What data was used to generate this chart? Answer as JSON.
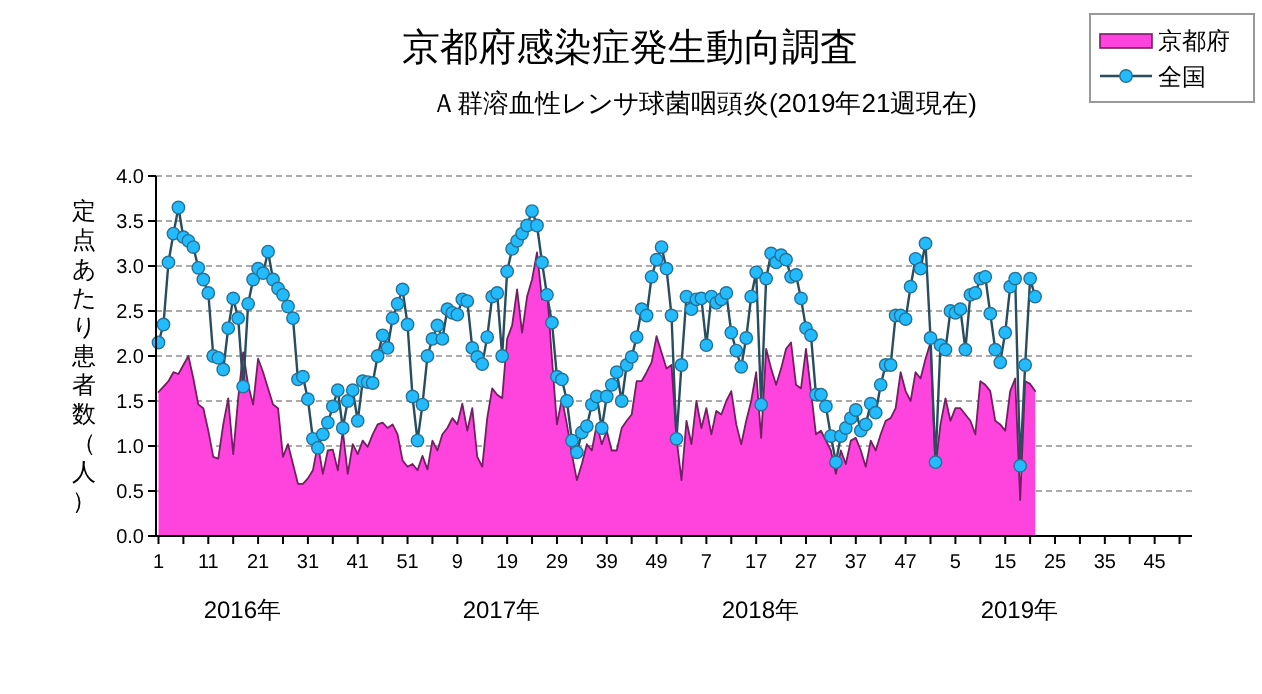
{
  "chart_data": {
    "type": "area",
    "title": "京都府感染症発生動向調査",
    "subtitle": "Ａ群溶血性レンサ球菌咽頭炎(2019年21週現在)",
    "ylabel": "定点あたり患者数（人）",
    "annotations": [
      "2016年",
      "2017年",
      "2018年",
      "2019年"
    ],
    "categories": [
      "1",
      null,
      null,
      null,
      null,
      null,
      null,
      null,
      null,
      null,
      "11",
      null,
      null,
      null,
      null,
      null,
      null,
      null,
      null,
      null,
      "21",
      null,
      null,
      null,
      null,
      null,
      null,
      null,
      null,
      null,
      "31",
      null,
      null,
      null,
      null,
      null,
      null,
      null,
      null,
      null,
      "41",
      null,
      null,
      null,
      null,
      null,
      null,
      null,
      null,
      null,
      "51",
      null,
      null,
      null,
      null,
      null,
      null,
      null,
      null,
      null,
      "9",
      null,
      null,
      null,
      null,
      null,
      null,
      null,
      null,
      null,
      "19",
      null,
      null,
      null,
      null,
      null,
      null,
      null,
      null,
      null,
      "29",
      null,
      null,
      null,
      null,
      null,
      null,
      null,
      null,
      null,
      "39",
      null,
      null,
      null,
      null,
      null,
      null,
      null,
      null,
      null,
      "49",
      null,
      null,
      null,
      null,
      null,
      null,
      null,
      null,
      null,
      "7",
      null,
      null,
      null,
      null,
      null,
      null,
      null,
      null,
      null,
      "17",
      null,
      null,
      null,
      null,
      null,
      null,
      null,
      null,
      null,
      "27",
      null,
      null,
      null,
      null,
      null,
      null,
      null,
      null,
      null,
      "37",
      null,
      null,
      null,
      null,
      null,
      null,
      null,
      null,
      null,
      "47",
      null,
      null,
      null,
      null,
      null,
      null,
      null,
      null,
      null,
      "5",
      null,
      null,
      null,
      null,
      null,
      null,
      null,
      null,
      null,
      "15",
      null,
      null,
      null,
      null,
      null,
      null,
      null,
      null,
      null,
      "25",
      null,
      null,
      null,
      null,
      null,
      null,
      null,
      null,
      null,
      "35",
      null,
      null,
      null,
      null,
      null,
      null,
      null,
      null,
      null,
      "45",
      null,
      null,
      null,
      null,
      null,
      null,
      null
    ],
    "series": [
      {
        "name": "京都府",
        "color": "#ff44dd",
        "values": [
          1.6,
          1.66,
          1.72,
          1.82,
          1.8,
          1.9,
          2.0,
          1.75,
          1.46,
          1.42,
          1.17,
          0.88,
          0.86,
          1.24,
          1.53,
          0.91,
          1.53,
          2.04,
          1.68,
          1.46,
          1.97,
          1.82,
          1.64,
          1.46,
          1.42,
          0.88,
          1.02,
          0.8,
          0.58,
          0.58,
          0.64,
          0.73,
          1.02,
          0.69,
          0.95,
          0.96,
          0.73,
          1.17,
          0.69,
          1.02,
          0.91,
          1.06,
          0.99,
          1.13,
          1.24,
          1.26,
          1.2,
          1.24,
          1.13,
          0.84,
          0.77,
          0.8,
          0.73,
          0.89,
          0.74,
          1.06,
          0.95,
          1.13,
          1.2,
          1.31,
          1.24,
          1.47,
          1.17,
          1.42,
          0.88,
          0.77,
          1.31,
          1.64,
          1.57,
          1.53,
          2.19,
          2.34,
          2.74,
          2.26,
          2.66,
          2.85,
          3.15,
          2.63,
          2.74,
          1.97,
          1.24,
          1.53,
          1.24,
          0.91,
          0.62,
          0.8,
          1.02,
          0.95,
          1.24,
          1.02,
          1.17,
          0.95,
          0.95,
          1.2,
          1.28,
          1.35,
          1.72,
          1.72,
          1.82,
          1.93,
          2.22,
          2.04,
          1.86,
          1.9,
          1.09,
          0.62,
          1.28,
          1.02,
          1.5,
          1.2,
          1.42,
          1.13,
          1.39,
          1.35,
          1.5,
          1.61,
          1.24,
          1.02,
          1.28,
          1.5,
          1.82,
          1.09,
          2.08,
          1.86,
          1.68,
          1.86,
          2.08,
          2.15,
          1.68,
          1.64,
          2.08,
          1.61,
          1.13,
          1.17,
          1.06,
          0.95,
          0.69,
          0.95,
          0.8,
          1.06,
          1.09,
          0.95,
          0.77,
          1.06,
          0.95,
          1.13,
          1.28,
          1.31,
          1.42,
          1.82,
          1.61,
          1.5,
          1.82,
          1.75,
          1.97,
          2.15,
          0.77,
          1.24,
          1.53,
          1.28,
          1.42,
          1.42,
          1.35,
          1.28,
          1.13,
          1.72,
          1.68,
          1.61,
          1.28,
          1.24,
          1.17,
          1.61,
          1.75,
          0.4,
          1.72,
          1.69,
          1.61,
          null,
          null,
          null,
          null,
          null,
          null,
          null,
          null,
          null,
          null,
          null,
          null,
          null,
          null,
          null,
          null,
          null,
          null,
          null,
          null,
          null,
          null,
          null,
          null,
          null,
          null,
          null,
          null,
          null,
          null,
          null
        ]
      },
      {
        "name": "全国",
        "type": "line",
        "marker": "circle",
        "color": "#22bbff",
        "values": [
          2.15,
          2.35,
          3.04,
          3.36,
          3.65,
          3.32,
          3.28,
          3.21,
          2.98,
          2.85,
          2.7,
          2.0,
          1.98,
          1.85,
          2.31,
          2.64,
          2.42,
          1.66,
          2.58,
          2.85,
          2.97,
          2.92,
          3.16,
          2.85,
          2.75,
          2.68,
          2.55,
          2.42,
          1.74,
          1.77,
          1.52,
          1.08,
          0.98,
          1.13,
          1.26,
          1.44,
          1.62,
          1.2,
          1.5,
          1.62,
          1.28,
          1.72,
          1.71,
          1.7,
          2.0,
          2.23,
          2.09,
          2.42,
          2.58,
          2.74,
          2.35,
          1.55,
          1.06,
          1.46,
          2.0,
          2.19,
          2.34,
          2.19,
          2.52,
          2.48,
          2.46,
          2.63,
          2.61,
          2.09,
          1.99,
          1.91,
          2.21,
          2.66,
          2.7,
          2.0,
          2.94,
          3.19,
          3.28,
          3.36,
          3.45,
          3.61,
          3.45,
          3.04,
          2.68,
          2.37,
          1.77,
          1.74,
          1.5,
          1.06,
          0.93,
          1.15,
          1.22,
          1.46,
          1.55,
          1.2,
          1.55,
          1.68,
          1.82,
          1.5,
          1.9,
          1.99,
          2.21,
          2.52,
          2.45,
          2.88,
          3.07,
          3.21,
          2.97,
          2.45,
          1.08,
          1.9,
          2.66,
          2.52,
          2.63,
          2.64,
          2.12,
          2.66,
          2.59,
          2.63,
          2.7,
          2.26,
          2.06,
          1.88,
          2.2,
          2.66,
          2.93,
          1.46,
          2.86,
          3.14,
          3.04,
          3.12,
          3.07,
          2.88,
          2.9,
          2.64,
          2.31,
          2.23,
          1.57,
          1.57,
          1.44,
          1.11,
          0.82,
          1.11,
          1.2,
          1.31,
          1.4,
          1.17,
          1.24,
          1.47,
          1.37,
          1.68,
          1.9,
          1.9,
          2.45,
          2.45,
          2.41,
          2.77,
          3.08,
          2.97,
          3.25,
          2.2,
          0.82,
          2.12,
          2.07,
          2.5,
          2.48,
          2.52,
          2.07,
          2.68,
          2.7,
          2.86,
          2.88,
          2.47,
          2.07,
          1.93,
          2.26,
          2.77,
          2.86,
          0.78,
          1.9,
          2.86,
          2.66,
          null,
          null,
          null,
          null,
          null,
          null,
          null,
          null,
          null,
          null,
          null,
          null,
          null,
          null,
          null,
          null,
          null,
          null,
          null,
          null,
          null,
          null,
          null,
          null,
          null,
          null,
          null,
          null,
          null,
          null,
          null
        ]
      }
    ],
    "ylim": [
      0,
      4
    ],
    "yticks": [
      {
        "value": 0,
        "label": "0.0"
      },
      {
        "value": 0.5,
        "label": "0.5"
      },
      {
        "value": 1,
        "label": "1.0"
      },
      {
        "value": 1.5,
        "label": "1.5"
      },
      {
        "value": 2,
        "label": "2.0"
      },
      {
        "value": 2.5,
        "label": "2.5"
      },
      {
        "value": 3,
        "label": "3.0"
      },
      {
        "value": 3.5,
        "label": "3.5"
      },
      {
        "value": 4,
        "label": "4.0"
      }
    ],
    "grid": "y",
    "legend": "top right"
  }
}
